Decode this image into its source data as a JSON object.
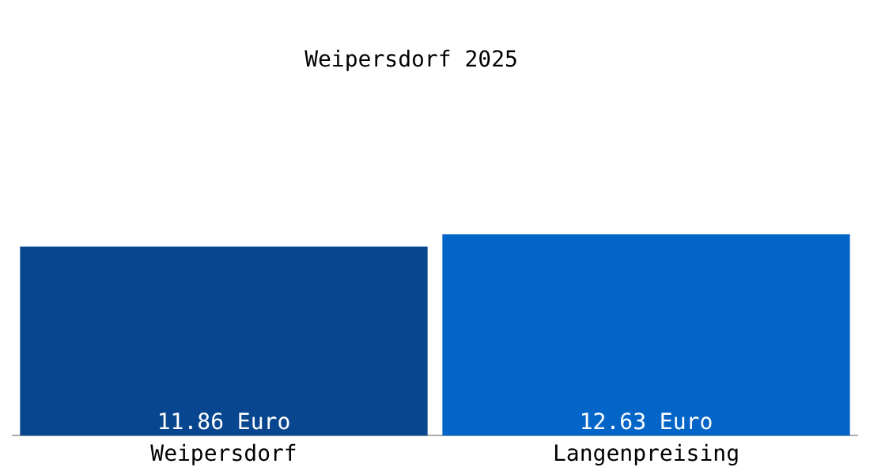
{
  "chart_data": {
    "type": "bar",
    "title": "Weipersdorf 2025",
    "categories": [
      "Weipersdorf",
      "Langenpreising"
    ],
    "values": [
      11.86,
      12.63
    ],
    "colors": [
      "#08478f",
      "#0465c9"
    ],
    "value_labels": [
      "11.86 Euro",
      "12.63 Euro"
    ],
    "grid": false,
    "legend": false
  }
}
